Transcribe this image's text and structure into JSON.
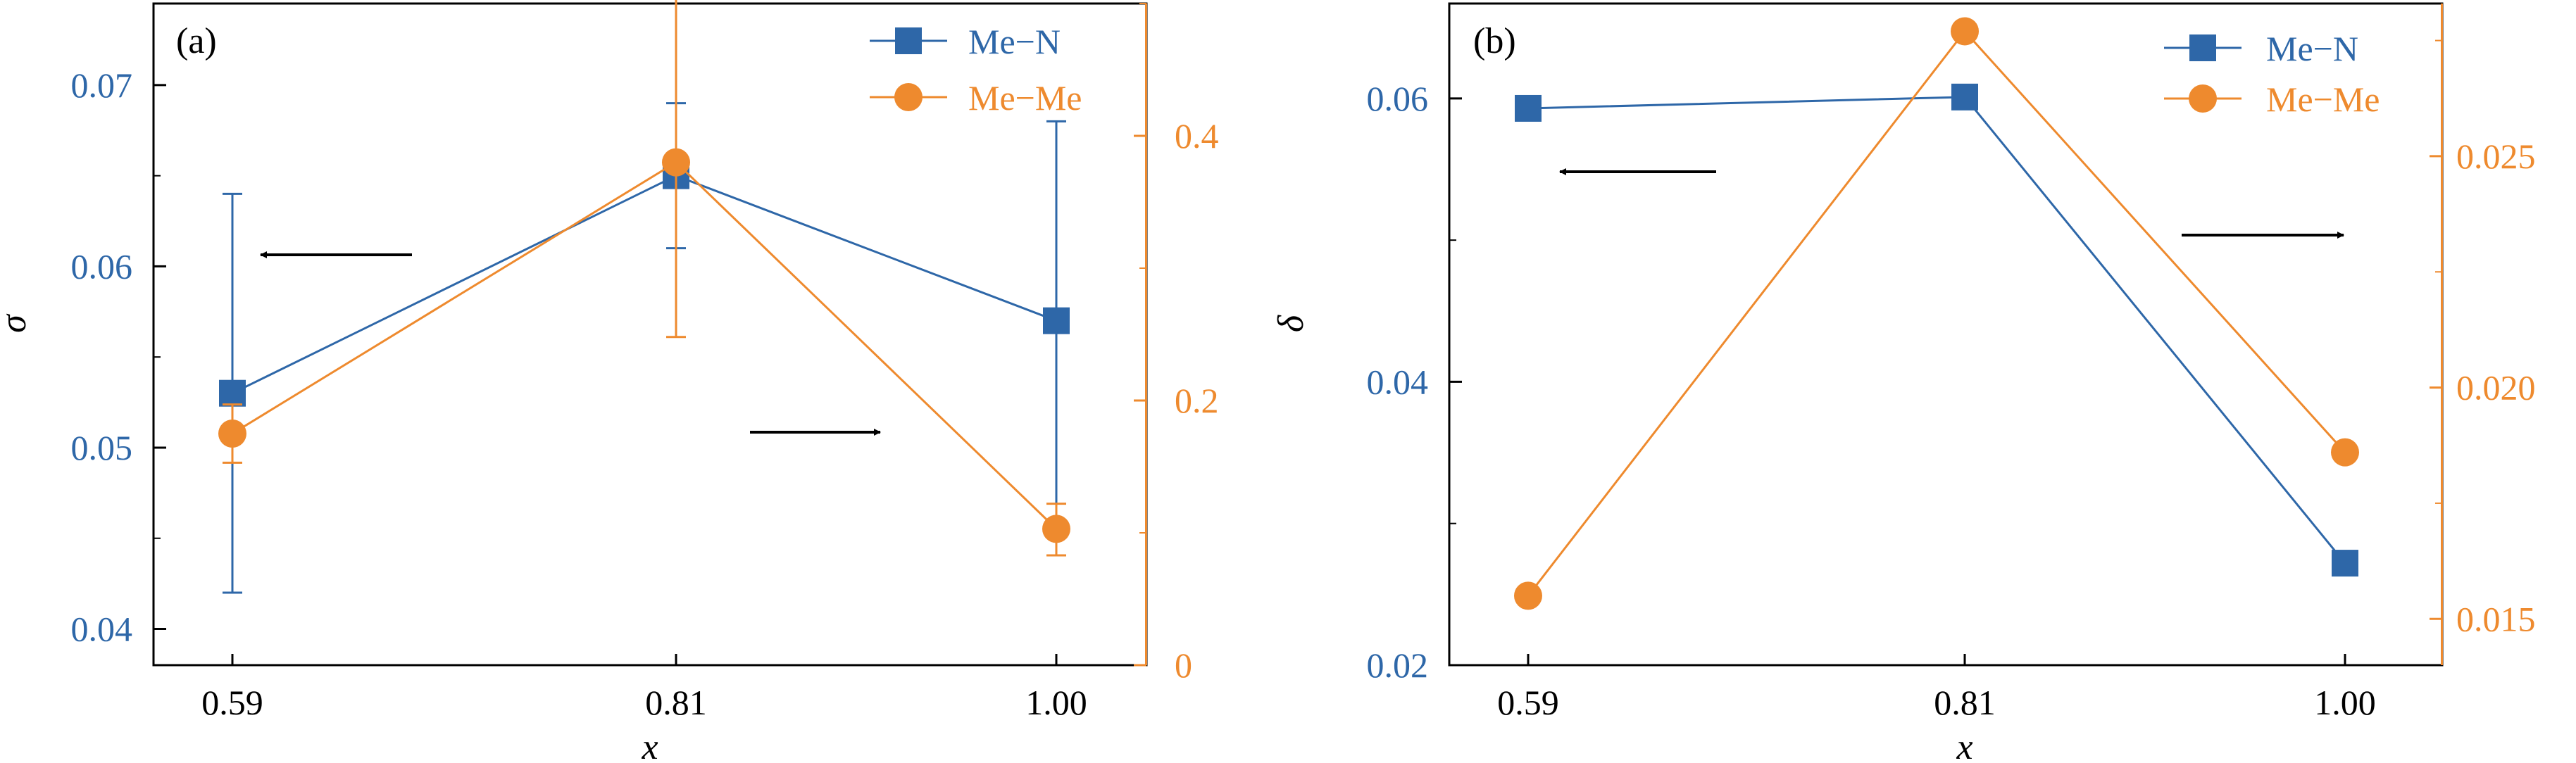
{
  "colors": {
    "blue": "#2E67A8",
    "orange": "#EE8A2E",
    "axis": "#000000"
  },
  "chart_data": [
    {
      "panel_label": "(a)",
      "type": "line",
      "categories": [
        "0.59",
        "0.81",
        "1.00"
      ],
      "xlabel": "x",
      "ylabel_left": "σ",
      "ylabel_right": "",
      "ylim_left": [
        0.038,
        0.0745
      ],
      "ylim_right": [
        0,
        0.5
      ],
      "yticks_left": [
        {
          "value": 0.04,
          "label": "0.04"
        },
        {
          "value": 0.05,
          "label": "0.05"
        },
        {
          "value": 0.06,
          "label": "0.06"
        },
        {
          "value": 0.07,
          "label": "0.07"
        }
      ],
      "yticks_right": [
        {
          "value": 0,
          "label": "0"
        },
        {
          "value": 0.2,
          "label": "0.2"
        },
        {
          "value": 0.4,
          "label": "0.4"
        }
      ],
      "series": [
        {
          "name": "Me−N",
          "axis": "left",
          "marker": "square",
          "color": "#2E67A8",
          "values": [
            0.053,
            0.065,
            0.057
          ],
          "err_low": [
            0.042,
            0.061,
            0.046
          ],
          "err_high": [
            0.064,
            0.069,
            0.068
          ]
        },
        {
          "name": "Me−Me",
          "axis": "right",
          "marker": "circle",
          "color": "#EE8A2E",
          "values": [
            0.175,
            0.38,
            0.103
          ],
          "err_low": [
            0.153,
            0.248,
            0.083
          ],
          "err_high": [
            0.197,
            0.505,
            0.122
          ]
        }
      ],
      "arrows": [
        {
          "direction": "left",
          "points_to": "left axis"
        },
        {
          "direction": "right",
          "points_to": "right axis"
        }
      ],
      "legend": "top-right",
      "grid": false
    },
    {
      "panel_label": "(b)",
      "type": "line",
      "categories": [
        "0.59",
        "0.81",
        "1.00"
      ],
      "xlabel": "x",
      "ylabel_left": "δ",
      "ylabel_right": "",
      "ylim_left": [
        0.02,
        0.0667
      ],
      "ylim_right": [
        0.014,
        0.0283
      ],
      "yticks_left": [
        {
          "value": 0.02,
          "label": "0.02"
        },
        {
          "value": 0.04,
          "label": "0.04"
        },
        {
          "value": 0.06,
          "label": "0.06"
        }
      ],
      "yticks_right": [
        {
          "value": 0.015,
          "label": "0.015"
        },
        {
          "value": 0.02,
          "label": "0.020"
        },
        {
          "value": 0.025,
          "label": "0.025"
        }
      ],
      "series": [
        {
          "name": "Me−N",
          "axis": "left",
          "marker": "square",
          "color": "#2E67A8",
          "values": [
            0.0593,
            0.0601,
            0.0272
          ]
        },
        {
          "name": "Me−Me",
          "axis": "right",
          "marker": "circle",
          "color": "#EE8A2E",
          "values": [
            0.0155,
            0.0277,
            0.0186
          ]
        }
      ],
      "arrows": [
        {
          "direction": "left",
          "points_to": "left axis"
        },
        {
          "direction": "right",
          "points_to": "right axis"
        }
      ],
      "legend": "top-right",
      "grid": false
    }
  ]
}
